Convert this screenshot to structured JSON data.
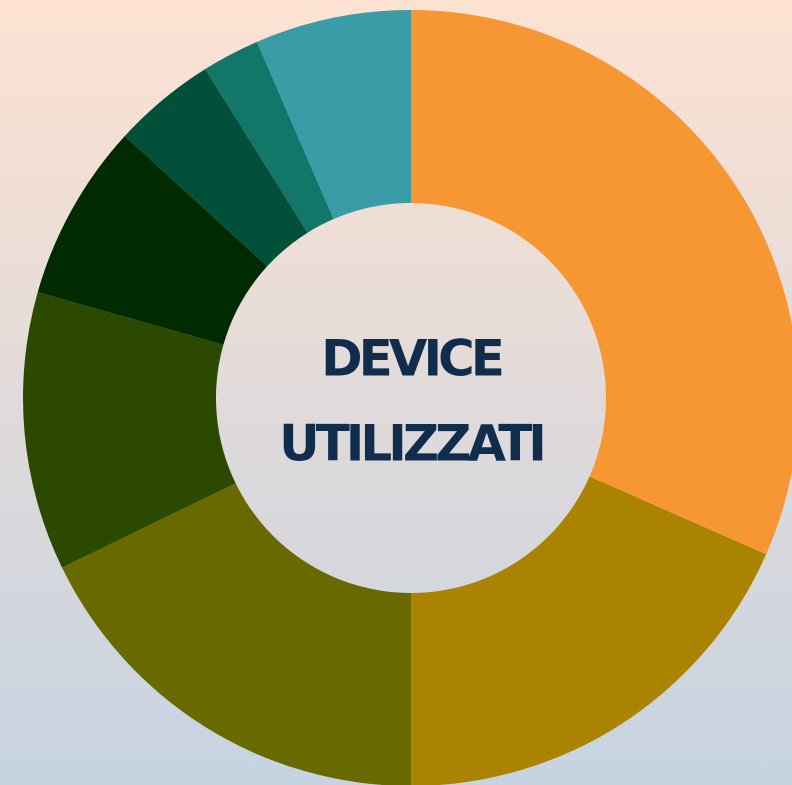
{
  "chart_data": {
    "type": "donut",
    "annotations": [
      "DEVICE",
      "UTILIZZATI"
    ],
    "categories": [
      null,
      null,
      null,
      null,
      null,
      null,
      null,
      null
    ],
    "values": [
      31.6,
      18.4,
      17.8,
      11.6,
      7.4,
      4.3,
      2.4,
      6.5
    ],
    "colors": [
      "#f79734",
      "#aa8400",
      "#686a00",
      "#2b4a00",
      "#002b00",
      "#03503a",
      "#127668",
      "#3a9ca6"
    ]
  }
}
